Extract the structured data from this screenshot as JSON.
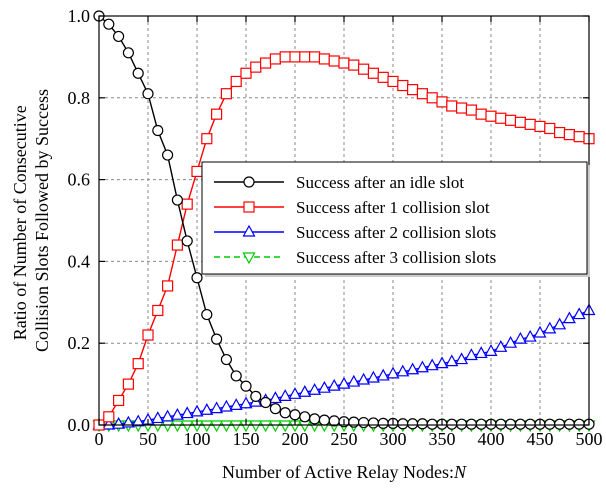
{
  "chart_data": {
    "type": "line",
    "title": "",
    "xlabel": "Number of Active Relay Nodes:",
    "xlabel_var": "N",
    "ylabel_lines": [
      "Ratio of Number of Consecutive",
      "Collision Slots Followed by Success"
    ],
    "xlim": [
      0,
      500
    ],
    "ylim": [
      0,
      1.0
    ],
    "xticks": [
      0,
      50,
      100,
      150,
      200,
      250,
      300,
      350,
      400,
      450,
      500
    ],
    "yticks": [
      0.0,
      0.2,
      0.4,
      0.6,
      0.8,
      1.0
    ],
    "ytick_labels": [
      "0.0",
      "0.2",
      "0.4",
      "0.6",
      "0.8",
      "1.0"
    ],
    "grid": true,
    "legend_position": "right",
    "x": [
      0,
      10,
      20,
      30,
      40,
      50,
      60,
      70,
      80,
      90,
      100,
      110,
      120,
      130,
      140,
      150,
      160,
      170,
      180,
      190,
      200,
      210,
      220,
      230,
      240,
      250,
      260,
      270,
      280,
      290,
      300,
      310,
      320,
      330,
      340,
      350,
      360,
      370,
      380,
      390,
      400,
      410,
      420,
      430,
      440,
      450,
      460,
      470,
      480,
      490,
      500
    ],
    "series": [
      {
        "name": "Success after an idle slot",
        "color": "#000000",
        "marker": "circle",
        "dash": "solid",
        "values": [
          1.0,
          0.98,
          0.95,
          0.91,
          0.86,
          0.81,
          0.72,
          0.66,
          0.55,
          0.45,
          0.36,
          0.27,
          0.21,
          0.16,
          0.12,
          0.095,
          0.07,
          0.055,
          0.04,
          0.03,
          0.025,
          0.02,
          0.015,
          0.012,
          0.01,
          0.008,
          0.007,
          0.006,
          0.005,
          0.004,
          0.004,
          0.003,
          0.003,
          0.003,
          0.002,
          0.002,
          0.002,
          0.002,
          0.002,
          0.002,
          0.002,
          0.002,
          0.002,
          0.002,
          0.002,
          0.002,
          0.002,
          0.002,
          0.002,
          0.002,
          0.002
        ]
      },
      {
        "name": "Success after 1 collision slot",
        "color": "#ff0000",
        "marker": "square",
        "dash": "solid",
        "values": [
          0.0,
          0.02,
          0.06,
          0.1,
          0.15,
          0.22,
          0.28,
          0.34,
          0.44,
          0.54,
          0.62,
          0.7,
          0.76,
          0.81,
          0.84,
          0.86,
          0.875,
          0.885,
          0.895,
          0.9,
          0.9,
          0.9,
          0.9,
          0.895,
          0.89,
          0.885,
          0.88,
          0.87,
          0.86,
          0.85,
          0.84,
          0.83,
          0.82,
          0.81,
          0.8,
          0.79,
          0.78,
          0.775,
          0.77,
          0.76,
          0.755,
          0.75,
          0.745,
          0.74,
          0.735,
          0.73,
          0.725,
          0.715,
          0.71,
          0.705,
          0.7
        ]
      },
      {
        "name": "Success after 2 collision slots",
        "color": "#0000ff",
        "marker": "triangle-up",
        "dash": "solid",
        "values": [
          0.0,
          0.0,
          0.002,
          0.005,
          0.008,
          0.012,
          0.016,
          0.02,
          0.024,
          0.028,
          0.032,
          0.036,
          0.04,
          0.044,
          0.048,
          0.052,
          0.056,
          0.06,
          0.065,
          0.07,
          0.075,
          0.08,
          0.085,
          0.09,
          0.095,
          0.1,
          0.105,
          0.11,
          0.115,
          0.12,
          0.125,
          0.13,
          0.135,
          0.14,
          0.145,
          0.15,
          0.155,
          0.16,
          0.17,
          0.175,
          0.18,
          0.19,
          0.2,
          0.21,
          0.215,
          0.225,
          0.235,
          0.245,
          0.26,
          0.27,
          0.28
        ]
      },
      {
        "name": "Success after 3 collision slots",
        "color": "#00cc00",
        "marker": "triangle-down",
        "dash": "dashed",
        "values": [
          0.0,
          0.0,
          0.0,
          0.0,
          0.0,
          0.0,
          0.0,
          0.0,
          0.0,
          0.0,
          0.0,
          0.0,
          0.0,
          0.0,
          0.0,
          0.0,
          0.0,
          0.0,
          0.0,
          0.0,
          0.0,
          0.0,
          0.0,
          0.0,
          0.0,
          0.0,
          0.0,
          0.0,
          0.0,
          0.0,
          0.0,
          0.0,
          0.0,
          0.0,
          0.0,
          0.0,
          0.0,
          0.0,
          0.0,
          0.0,
          0.0,
          0.0,
          0.0,
          0.0,
          0.0,
          0.0,
          0.0,
          0.0,
          0.0,
          0.0,
          0.0
        ]
      }
    ]
  }
}
